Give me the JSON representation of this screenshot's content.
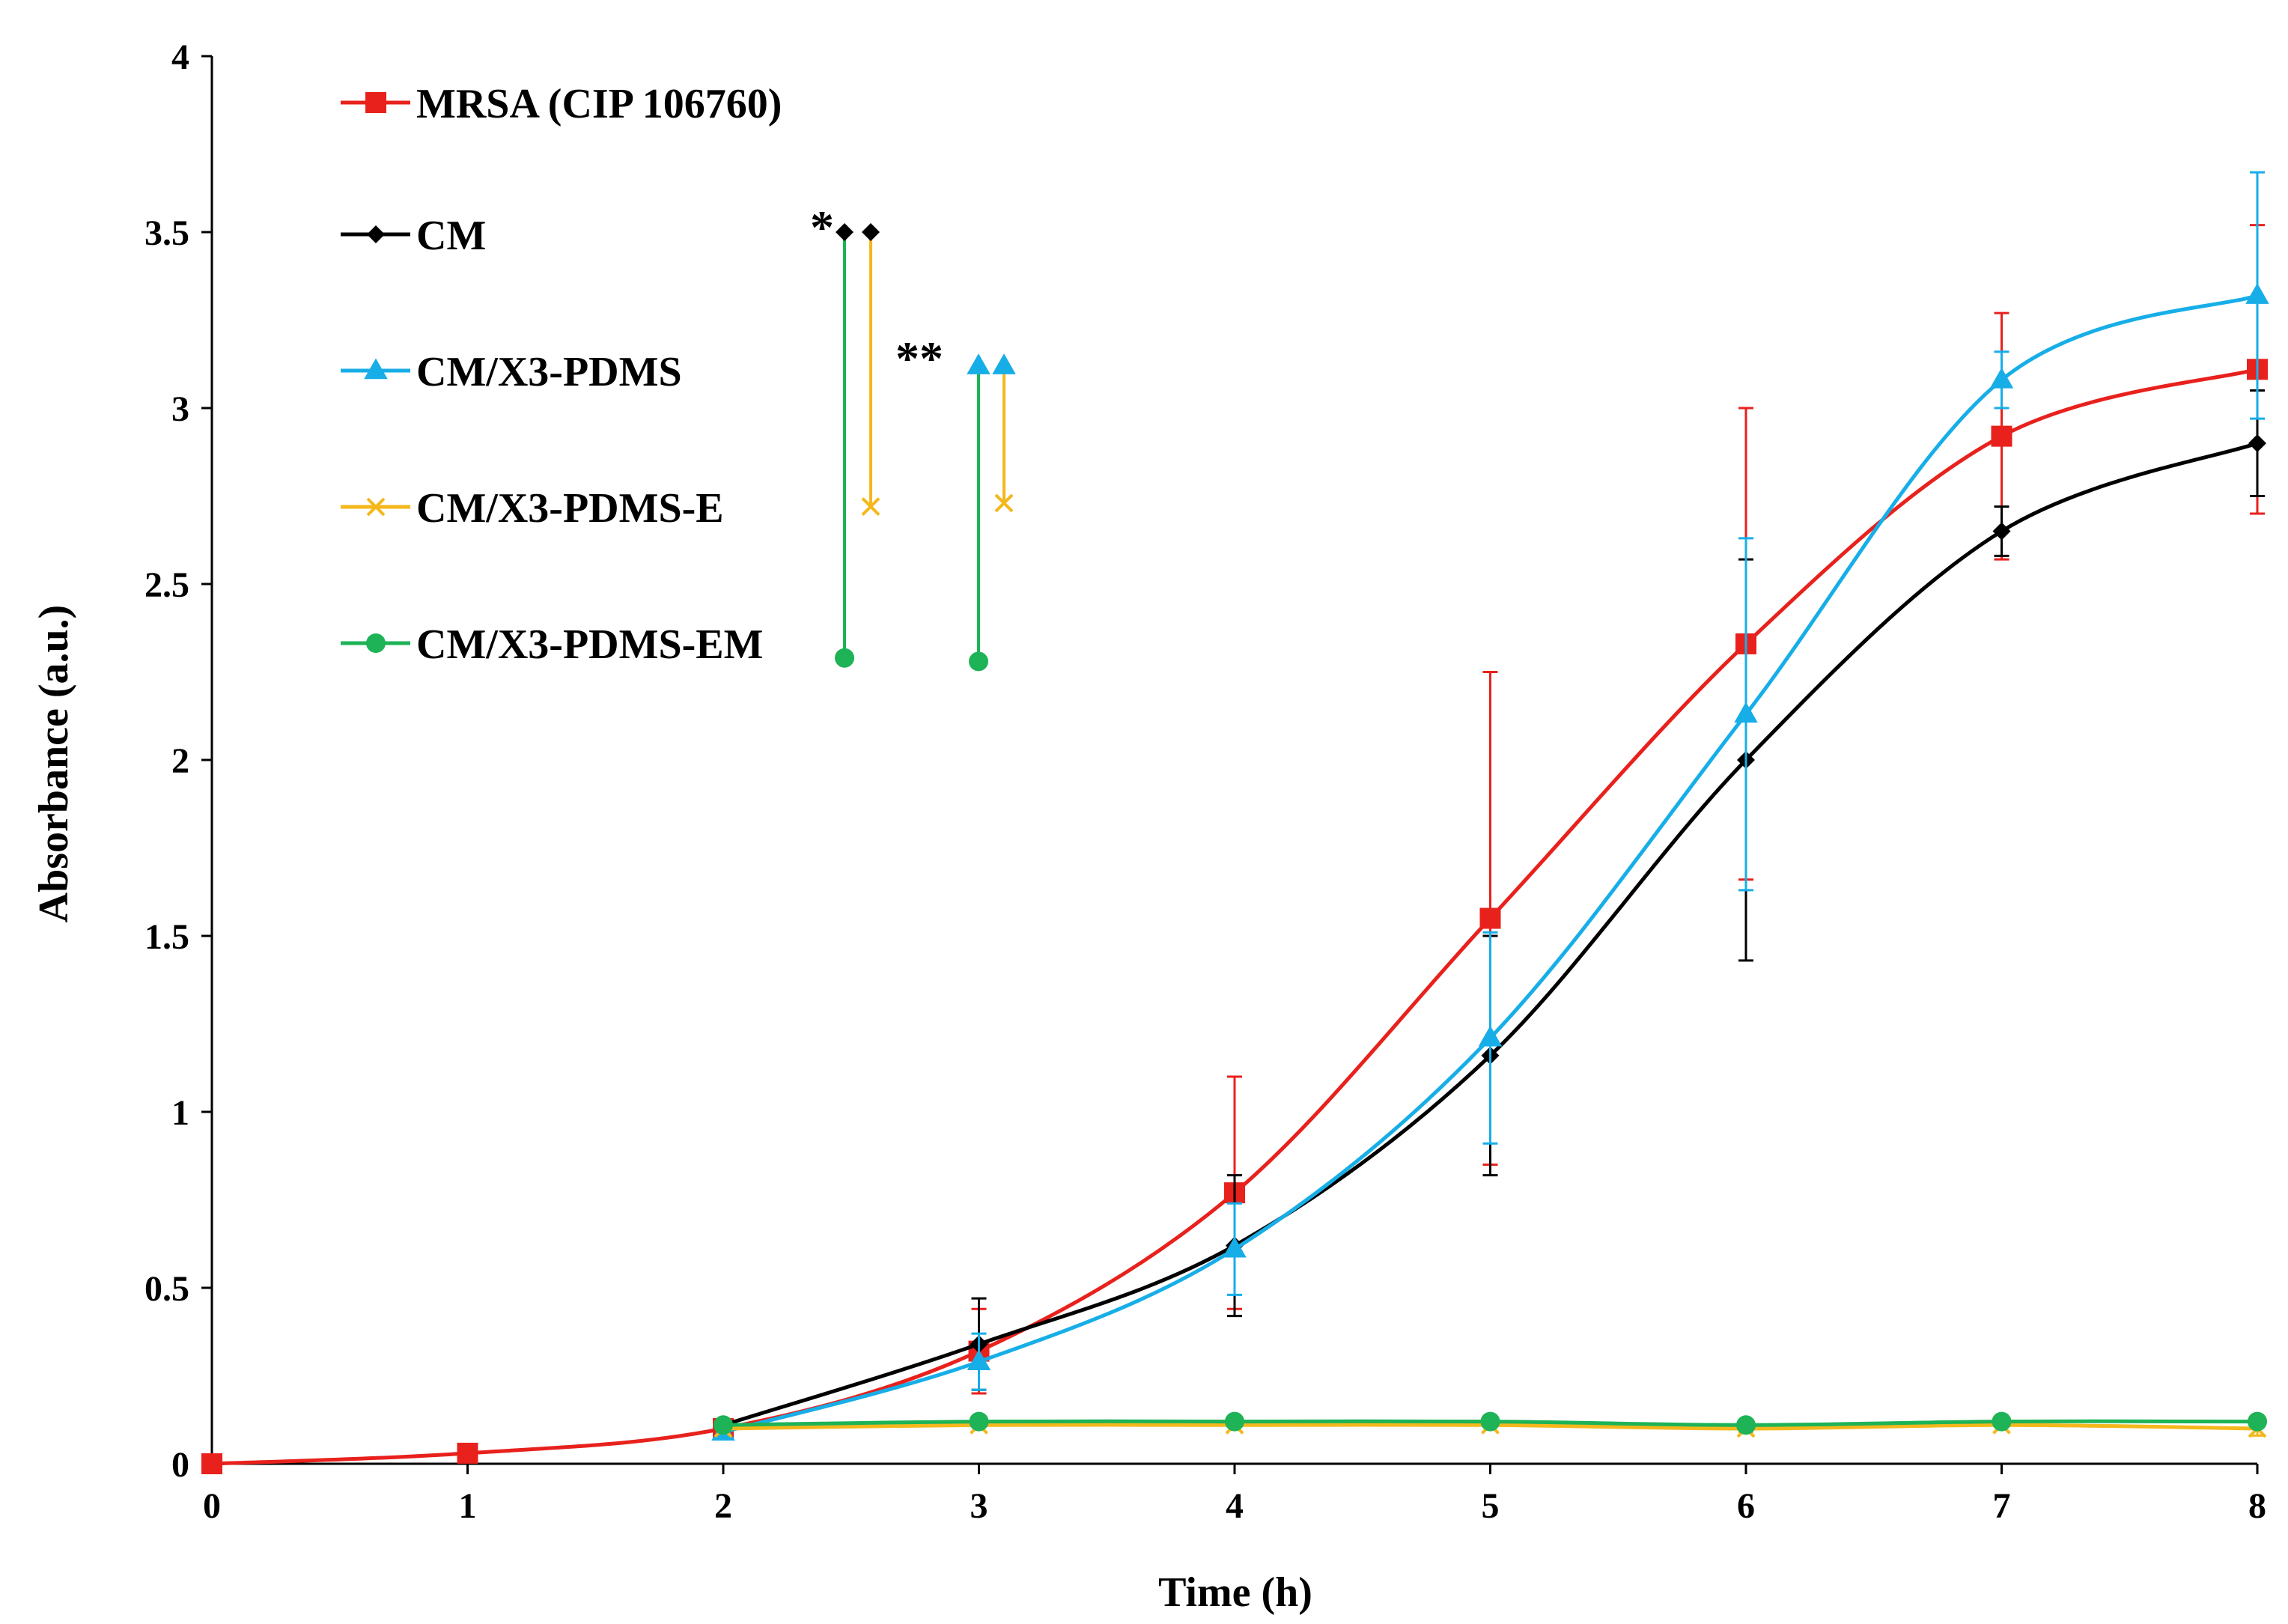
{
  "chart_data": {
    "type": "line",
    "title": "",
    "xlabel": "Time (h)",
    "ylabel": "Absorbance (a.u.)",
    "xlim": [
      0,
      8
    ],
    "ylim": [
      0,
      4
    ],
    "x_ticks": [
      "0",
      "1",
      "2",
      "3",
      "4",
      "5",
      "6",
      "7",
      "8"
    ],
    "y_ticks": [
      "0",
      "0.5",
      "1",
      "1.5",
      "2",
      "2.5",
      "3",
      "3.5",
      "4"
    ],
    "grid": false,
    "legend_position": "top-left",
    "series": [
      {
        "name": "MRSA (CIP 106760)",
        "color": "#e8211d",
        "marker": "square",
        "x": [
          0,
          1,
          2,
          3,
          4,
          5,
          6,
          7,
          8
        ],
        "values": [
          0.0,
          0.03,
          0.1,
          0.32,
          0.77,
          1.55,
          2.33,
          2.92,
          3.11
        ],
        "errors": [
          0,
          0,
          0,
          0.12,
          0.33,
          0.7,
          0.67,
          0.35,
          0.41
        ]
      },
      {
        "name": "CM",
        "color": "#000000",
        "marker": "diamond",
        "x": [
          2,
          3,
          4,
          5,
          6,
          7,
          8
        ],
        "values": [
          0.11,
          0.34,
          0.62,
          1.16,
          2.0,
          2.65,
          2.9
        ],
        "errors": [
          0,
          0.13,
          0.2,
          0.34,
          0.57,
          0.07,
          0.15
        ]
      },
      {
        "name": "CM/X3-PDMS",
        "color": "#17aee8",
        "marker": "triangle",
        "x": [
          2,
          3,
          4,
          5,
          6,
          7,
          8
        ],
        "values": [
          0.09,
          0.29,
          0.61,
          1.21,
          2.13,
          3.08,
          3.32
        ],
        "errors": [
          0,
          0.08,
          0.13,
          0.3,
          0.5,
          0.08,
          0.35
        ]
      },
      {
        "name": "CM/X3-PDMS-E",
        "color": "#f4b81c",
        "marker": "x",
        "x": [
          2,
          3,
          4,
          5,
          6,
          7,
          8
        ],
        "values": [
          0.1,
          0.11,
          0.11,
          0.11,
          0.1,
          0.11,
          0.1
        ],
        "errors": [
          0,
          0,
          0,
          0,
          0.01,
          0,
          0.02
        ]
      },
      {
        "name": "CM/X3-PDMS-EM",
        "color": "#1db356",
        "marker": "circle",
        "x": [
          2,
          3,
          4,
          5,
          6,
          7,
          8
        ],
        "values": [
          0.11,
          0.12,
          0.12,
          0.12,
          0.11,
          0.12,
          0.12
        ],
        "errors": [
          0,
          0,
          0,
          0,
          0,
          0,
          0
        ]
      }
    ],
    "annotations": [
      {
        "label": "*",
        "brackets": [
          {
            "from_series": "CM/X3-PDMS-EM",
            "to_series": "CM",
            "from_value": 2.29,
            "to_value": 3.5
          },
          {
            "from_series": "CM/X3-PDMS-E",
            "to_series": "CM",
            "from_value": 2.72,
            "to_value": 3.5
          }
        ]
      },
      {
        "label": "**",
        "brackets": [
          {
            "from_series": "CM/X3-PDMS-EM",
            "to_series": "CM/X3-PDMS",
            "from_value": 2.28,
            "to_value": 3.12
          },
          {
            "from_series": "CM/X3-PDMS-E",
            "to_series": "CM/X3-PDMS",
            "from_value": 2.73,
            "to_value": 3.12
          }
        ]
      }
    ]
  }
}
